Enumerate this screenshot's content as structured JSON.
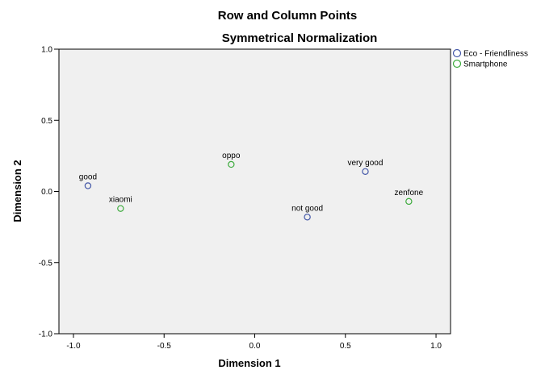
{
  "chart_data": {
    "type": "scatter",
    "title": "Row and Column Points",
    "subtitle": "Symmetrical Normalization",
    "xlabel": "Dimension 1",
    "ylabel": "Dimension 2",
    "xlim": [
      -1.08,
      1.08
    ],
    "ylim": [
      -1.0,
      1.0
    ],
    "xticks": [
      "-1.0",
      "-0.5",
      "0.0",
      "0.5",
      "1.0"
    ],
    "yticks": [
      "1.0",
      "0.5",
      "0.0",
      "-0.5",
      "-1.0"
    ],
    "plot_background": "#f0f0f0",
    "legend_position": "top-right",
    "series": [
      {
        "name": "Eco - Friendliness",
        "color": "#4458a8",
        "marker": "open-circle",
        "points": [
          {
            "label": "good",
            "x": -0.92,
            "y": 0.04
          },
          {
            "label": "not good",
            "x": 0.29,
            "y": -0.18
          },
          {
            "label": "very good",
            "x": 0.61,
            "y": 0.14
          }
        ]
      },
      {
        "name": "Smartphone",
        "color": "#3dab3d",
        "marker": "open-circle",
        "points": [
          {
            "label": "xiaomi",
            "x": -0.74,
            "y": -0.12
          },
          {
            "label": "oppo",
            "x": -0.13,
            "y": 0.19
          },
          {
            "label": "zenfone",
            "x": 0.85,
            "y": -0.07
          }
        ]
      }
    ]
  }
}
